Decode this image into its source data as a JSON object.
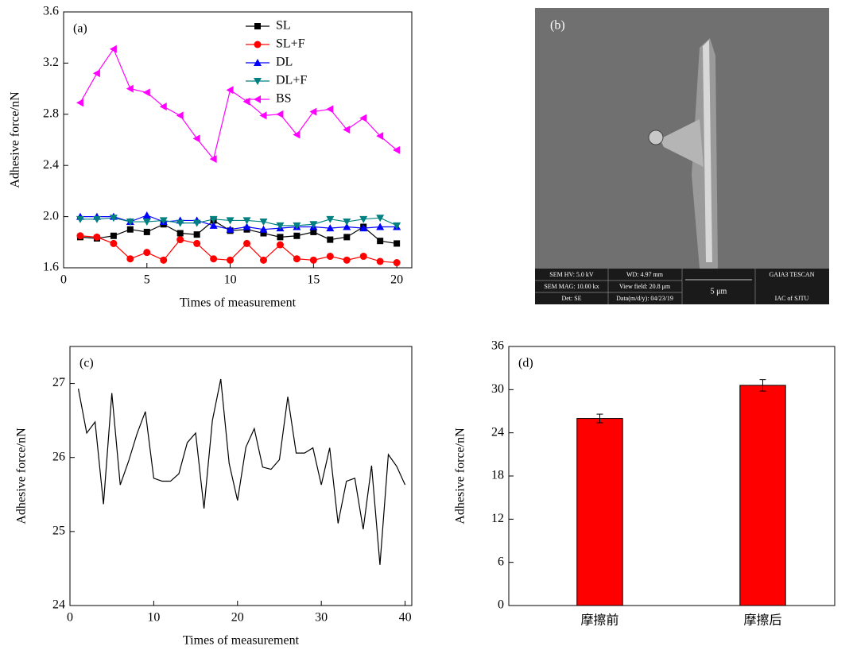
{
  "chart_data": [
    {
      "type": "line",
      "label": "(a)",
      "xlabel": "Times of measurement",
      "ylabel": "Adhesive force/nN",
      "x": [
        1,
        2,
        3,
        4,
        5,
        6,
        7,
        8,
        9,
        10,
        11,
        12,
        13,
        14,
        15,
        16,
        17,
        18,
        19,
        20
      ],
      "series": [
        {
          "name": "SL",
          "color": "#000000",
          "marker": "square",
          "values": [
            1.84,
            1.83,
            1.85,
            1.9,
            1.88,
            1.94,
            1.87,
            1.86,
            1.97,
            1.89,
            1.9,
            1.87,
            1.84,
            1.85,
            1.88,
            1.82,
            1.84,
            1.92,
            1.81,
            1.79
          ]
        },
        {
          "name": "SL+F",
          "color": "#ff0000",
          "marker": "circle",
          "values": [
            1.85,
            1.84,
            1.79,
            1.67,
            1.72,
            1.66,
            1.82,
            1.79,
            1.67,
            1.66,
            1.79,
            1.66,
            1.78,
            1.67,
            1.66,
            1.69,
            1.66,
            1.69,
            1.65,
            1.64
          ]
        },
        {
          "name": "DL",
          "color": "#0000ff",
          "marker": "triangle-up",
          "values": [
            2.0,
            2.0,
            2.0,
            1.96,
            2.01,
            1.96,
            1.97,
            1.97,
            1.93,
            1.9,
            1.92,
            1.9,
            1.91,
            1.92,
            1.92,
            1.91,
            1.92,
            1.91,
            1.92,
            1.92
          ]
        },
        {
          "name": "DL+F",
          "color": "#008080",
          "marker": "triangle-down",
          "values": [
            1.98,
            1.98,
            1.99,
            1.96,
            1.96,
            1.97,
            1.95,
            1.95,
            1.98,
            1.97,
            1.97,
            1.96,
            1.93,
            1.93,
            1.94,
            1.98,
            1.96,
            1.98,
            1.99,
            1.93
          ]
        },
        {
          "name": "BS",
          "color": "#ff00ff",
          "marker": "triangle-left",
          "values": [
            2.89,
            3.12,
            3.31,
            3.0,
            2.97,
            2.86,
            2.79,
            2.61,
            2.45,
            2.99,
            2.9,
            2.79,
            2.8,
            2.64,
            2.82,
            2.84,
            2.68,
            2.77,
            2.63,
            2.52
          ]
        }
      ],
      "xlim": [
        0,
        20.9
      ],
      "xticks": [
        0,
        5,
        10,
        15,
        20
      ],
      "ylim": [
        1.6,
        3.6
      ],
      "yticks": [
        1.6,
        {
          "value": 2,
          "label": "2.0"
        },
        2.4,
        2.8,
        3.2,
        3.6
      ],
      "legend": "upper center"
    },
    {
      "type": "line",
      "label": "(c)",
      "xlabel": "Times of measurement",
      "ylabel": "Adhesive force/nN",
      "x": [
        1,
        2,
        3,
        4,
        5,
        6,
        7,
        8,
        9,
        10,
        11,
        12,
        13,
        14,
        15,
        16,
        17,
        18,
        19,
        20,
        21,
        22,
        23,
        24,
        25,
        26,
        27,
        28,
        29,
        30,
        31,
        32,
        33,
        34,
        35,
        36,
        37,
        38,
        39,
        40
      ],
      "color": "#000000",
      "values": [
        26.93,
        26.33,
        26.48,
        25.37,
        26.87,
        25.63,
        25.95,
        26.32,
        26.62,
        25.72,
        25.68,
        25.68,
        25.78,
        26.2,
        26.33,
        25.31,
        26.5,
        27.06,
        25.92,
        25.42,
        26.14,
        26.39,
        25.87,
        25.84,
        25.97,
        26.82,
        26.06,
        26.06,
        26.13,
        25.63,
        26.13,
        25.11,
        25.68,
        25.72,
        25.03,
        25.89,
        24.55,
        26.04,
        25.88,
        25.63
      ],
      "xlim": [
        0,
        40.8
      ],
      "xticks": [
        0,
        10,
        20,
        30,
        40
      ],
      "ylim": [
        24,
        27.5
      ],
      "yticks": [
        24,
        25,
        26,
        27
      ]
    },
    {
      "type": "bar",
      "label": "(d)",
      "ylabel": "Adhesive force/nN",
      "categories": [
        "摩擦前",
        "摩擦后"
      ],
      "values": [
        26.0,
        30.6
      ],
      "errors": [
        0.6,
        0.8
      ],
      "color": "#ff0000",
      "ylim": [
        0,
        36
      ],
      "yticks": [
        0,
        6,
        12,
        18,
        24,
        30,
        36
      ]
    }
  ],
  "image_panel": {
    "label": "(b)",
    "info": [
      "SEM HV: 5.0 kV",
      "WD: 4.97 mm",
      "GAIA3 TESCAN",
      "SEM MAG: 10.00 kx",
      "View field: 20.8 μm",
      "5 μm",
      "Det: SE",
      "Data(m/d/y): 04/23/19",
      "IAC of SJTU"
    ]
  }
}
